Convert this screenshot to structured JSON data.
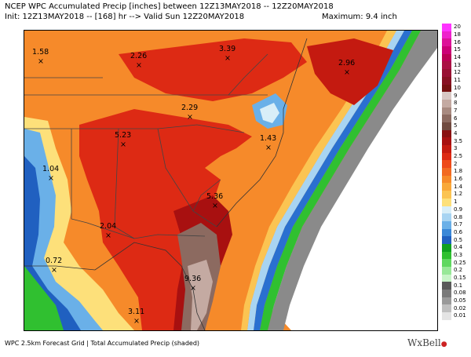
{
  "header": {
    "line1": "NCEP WPC Accumulated Precip [inches] between 12Z13MAY2018 -- 12Z20MAY2018",
    "line2": "Init: 12Z13MAY2018 -- [168] hr --> Valid Sun 12Z20MAY2018",
    "maximum": "Maximum: 9.4 inch"
  },
  "footer": "WPC 2.5km Forecast Grid | Total Accumulated Precip (shaded)",
  "brand": {
    "name": "WxBell",
    "mark": "●"
  },
  "markers": [
    {
      "id": "m1",
      "label": "1.58"
    },
    {
      "id": "m2",
      "label": "2.26"
    },
    {
      "id": "m3",
      "label": "3.39"
    },
    {
      "id": "m4",
      "label": "2.96"
    },
    {
      "id": "m5",
      "label": "2.29"
    },
    {
      "id": "m6",
      "label": "5.23"
    },
    {
      "id": "m7",
      "label": "1.43"
    },
    {
      "id": "m8",
      "label": "1.04"
    },
    {
      "id": "m9",
      "label": "5.36"
    },
    {
      "id": "m10",
      "label": "2.04"
    },
    {
      "id": "m11",
      "label": "0.72"
    },
    {
      "id": "m12",
      "label": "9.36"
    },
    {
      "id": "m13",
      "label": "3.11"
    }
  ],
  "legend": [
    {
      "label": "20",
      "color": "#ff33ff"
    },
    {
      "label": "18",
      "color": "#ee22cc"
    },
    {
      "label": "16",
      "color": "#dd1199"
    },
    {
      "label": "15",
      "color": "#cc0077"
    },
    {
      "label": "14",
      "color": "#bb0055"
    },
    {
      "label": "13",
      "color": "#aa1144"
    },
    {
      "label": "12",
      "color": "#991133"
    },
    {
      "label": "11",
      "color": "#881122"
    },
    {
      "label": "10",
      "color": "#771111"
    },
    {
      "label": "9",
      "color": "#d8c8c4"
    },
    {
      "label": "8",
      "color": "#c4aaa2"
    },
    {
      "label": "7",
      "color": "#a88a80"
    },
    {
      "label": "6",
      "color": "#8c6a60"
    },
    {
      "label": "5",
      "color": "#704a40"
    },
    {
      "label": "4",
      "color": "#8a1010"
    },
    {
      "label": "3.5",
      "color": "#a81010"
    },
    {
      "label": "3",
      "color": "#c41a10"
    },
    {
      "label": "2.5",
      "color": "#dd2a14"
    },
    {
      "label": "2",
      "color": "#ee4a1a"
    },
    {
      "label": "1.8",
      "color": "#f26a22"
    },
    {
      "label": "1.6",
      "color": "#f68a2a"
    },
    {
      "label": "1.4",
      "color": "#f9a83a"
    },
    {
      "label": "1.2",
      "color": "#fbc452"
    },
    {
      "label": "1",
      "color": "#fde07a"
    },
    {
      "label": "0.9",
      "color": "#d8eef8"
    },
    {
      "label": "0.8",
      "color": "#a8d4f2"
    },
    {
      "label": "0.7",
      "color": "#6ab0e8"
    },
    {
      "label": "0.6",
      "color": "#3a88d8"
    },
    {
      "label": "0.5",
      "color": "#2060c0"
    },
    {
      "label": "0.4",
      "color": "#10a020"
    },
    {
      "label": "0.3",
      "color": "#30c030"
    },
    {
      "label": "0.25",
      "color": "#60d860"
    },
    {
      "label": "0.2",
      "color": "#98e898"
    },
    {
      "label": "0.15",
      "color": "#c8f4c8"
    },
    {
      "label": "0.1",
      "color": "#5a5a5a"
    },
    {
      "label": "0.08",
      "color": "#7a7a7a"
    },
    {
      "label": "0.05",
      "color": "#9a9a9a"
    },
    {
      "label": "0.02",
      "color": "#c0c0c0"
    },
    {
      "label": "0.01",
      "color": "#e4e4e4"
    }
  ]
}
